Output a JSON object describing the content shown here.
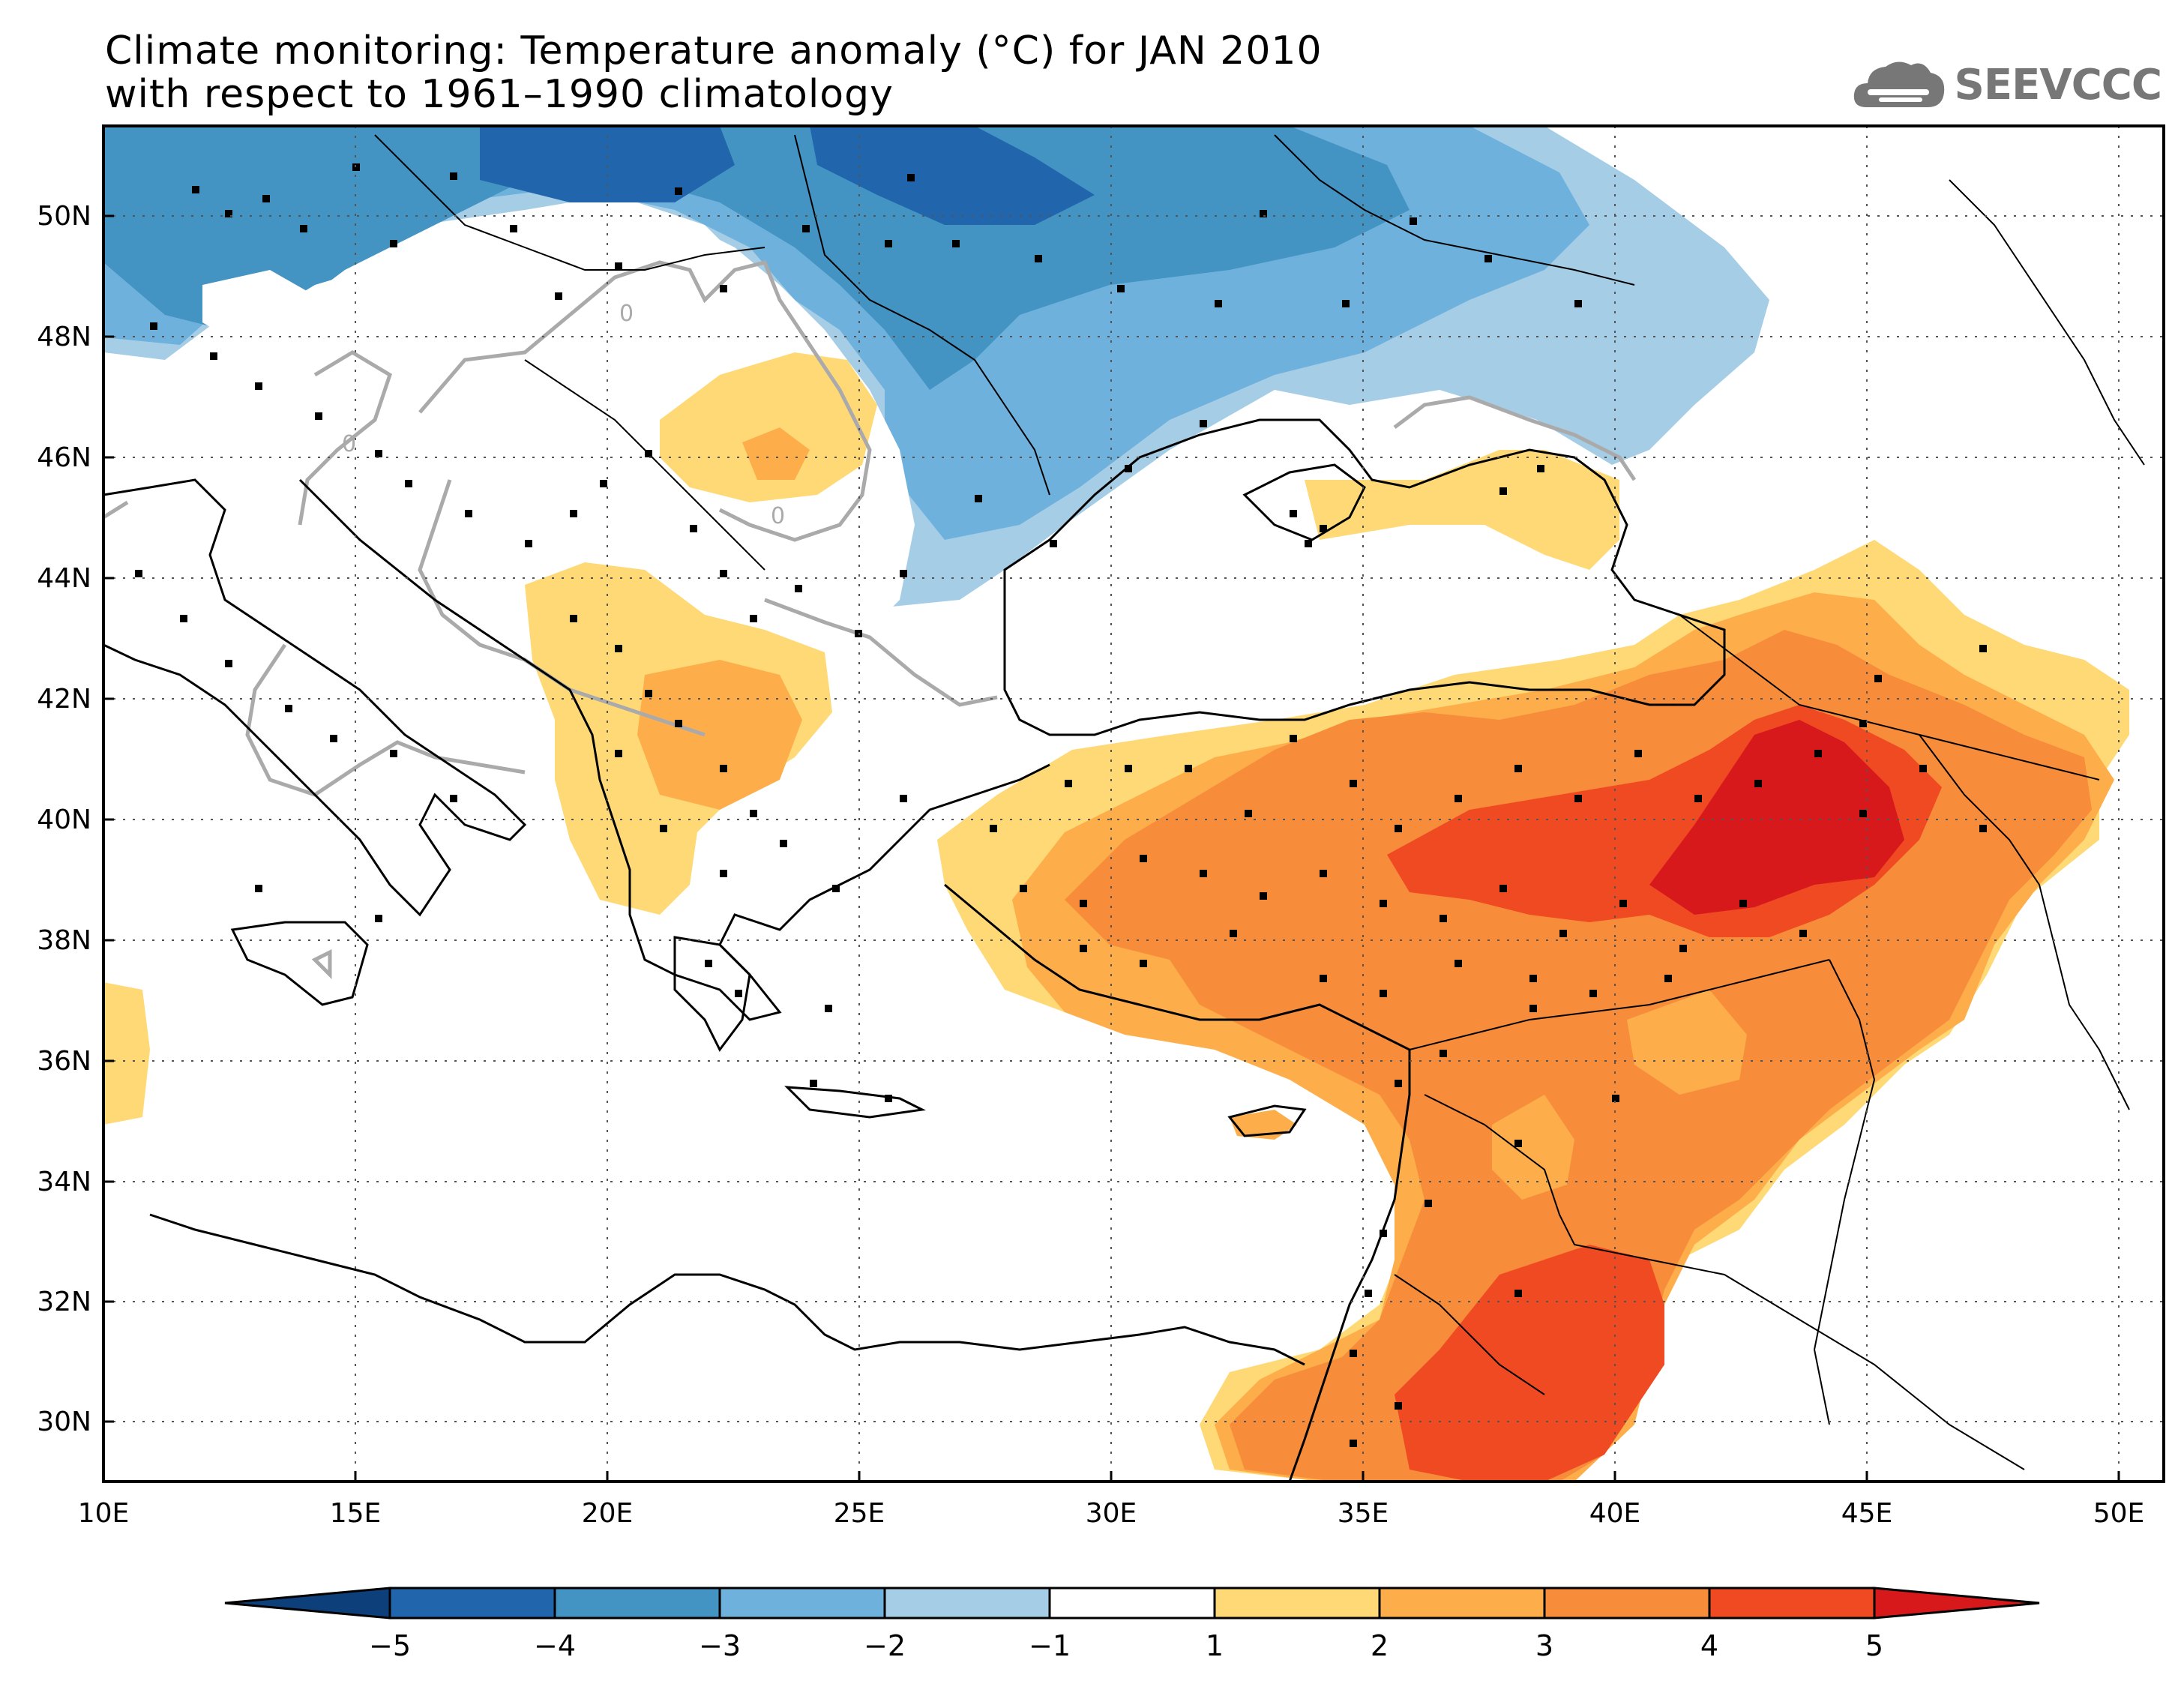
{
  "title": {
    "line1": "Climate monitoring: Temperature anomaly (°C) for JAN 2010",
    "line2": "with respect to 1961–1990 climatology"
  },
  "logo": {
    "text": "SEEVCCC",
    "icon": "cloud-icon"
  },
  "map": {
    "lon_range": [
      10,
      51
    ],
    "lat_range": [
      29,
      51.5
    ],
    "lon_ticks": [
      "10E",
      "15E",
      "20E",
      "25E",
      "30E",
      "35E",
      "40E",
      "45E",
      "50E"
    ],
    "lat_ticks": [
      "30N",
      "32N",
      "34N",
      "36N",
      "38N",
      "40N",
      "42N",
      "44N",
      "46N",
      "48N",
      "50N"
    ],
    "contour_label": "0"
  },
  "colorbar": {
    "labels": [
      "−5",
      "−4",
      "−3",
      "−2",
      "−1",
      "1",
      "2",
      "3",
      "4",
      "5"
    ],
    "colors": [
      "#0d3f7a",
      "#2166ac",
      "#4393c3",
      "#6fb1dd",
      "#a6cde6",
      "#ffffff",
      "#fed976",
      "#fdae4b",
      "#f78c3a",
      "#f04a23",
      "#d7191c"
    ]
  },
  "palette": {
    "blue_dark": "#2166ac",
    "blue": "#4393c3",
    "blue_mid": "#6fb1dd",
    "blue_light": "#a6cde6",
    "yellow": "#fed976",
    "orange_light": "#fdae4b",
    "orange": "#f78c3a",
    "red_orange": "#f04a23",
    "red": "#d7191c"
  }
}
